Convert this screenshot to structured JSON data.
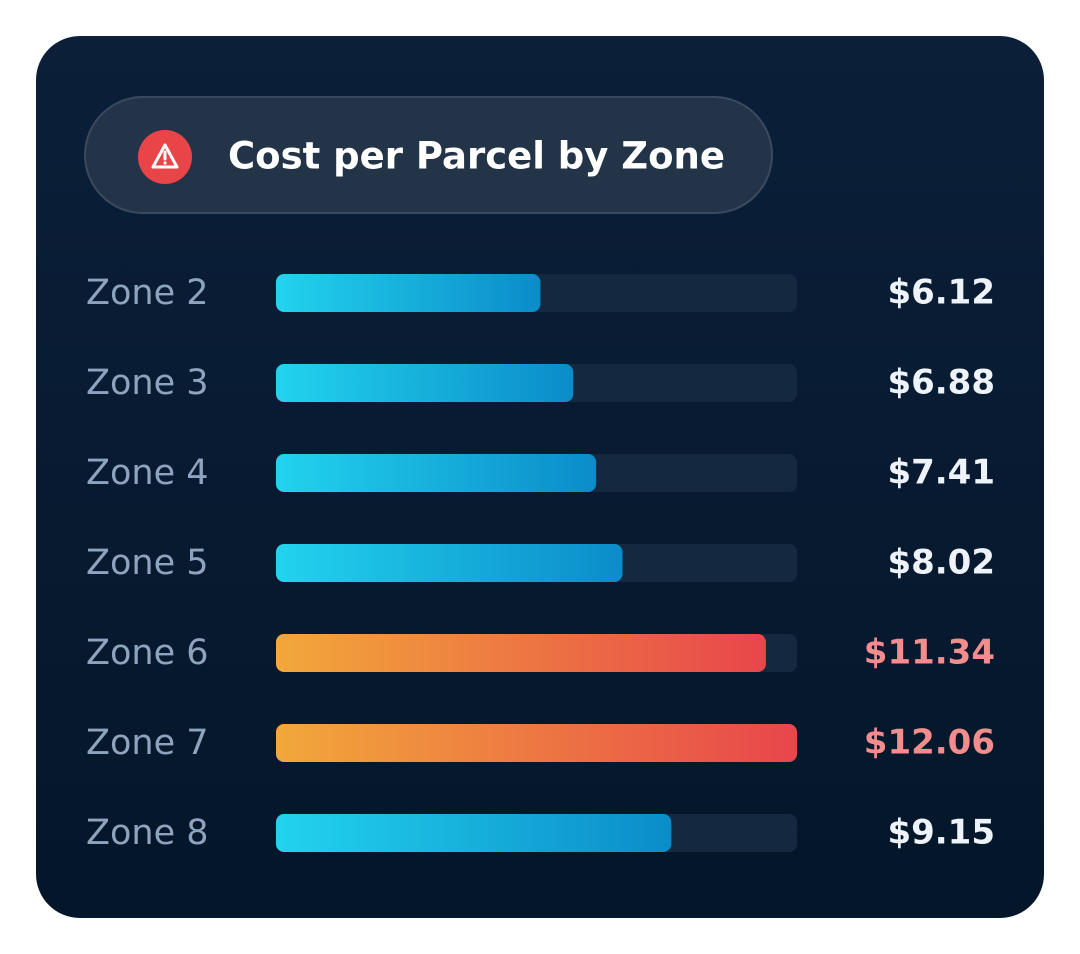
{
  "chart_data": {
    "type": "bar",
    "orientation": "horizontal",
    "title": "Cost per Parcel by Zone",
    "categories": [
      "Zone 2",
      "Zone 3",
      "Zone 4",
      "Zone 5",
      "Zone 6",
      "Zone 7",
      "Zone 8"
    ],
    "values": [
      6.12,
      6.88,
      7.41,
      8.02,
      11.34,
      12.06,
      9.15
    ],
    "value_labels": [
      "$6.12",
      "$6.88",
      "$7.41",
      "$8.02",
      "$11.34",
      "$12.06",
      "$9.15"
    ],
    "xlim": [
      0,
      12.06
    ],
    "color": [
      "#22d3ee",
      "#0b8cc9"
    ],
    "highlight_color": [
      "#f2a83a",
      "#e8464b"
    ],
    "highlight": [
      false,
      false,
      false,
      false,
      true,
      true,
      false
    ]
  }
}
